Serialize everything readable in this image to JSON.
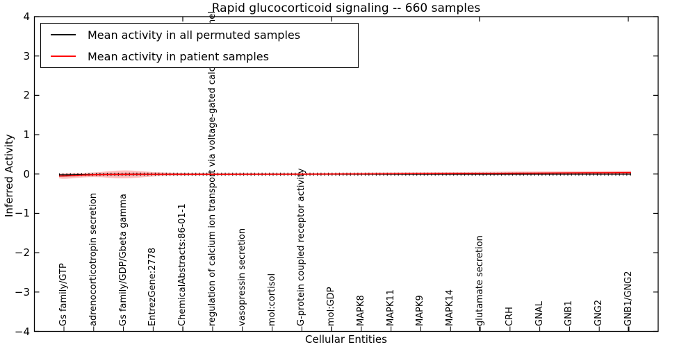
{
  "figure": {
    "title": "Rapid glucocorticoid signaling -- 660 samples",
    "xlabel": "Cellular Entities",
    "ylabel": "Inferred Activity"
  },
  "legend": {
    "items": [
      {
        "label": "Mean activity in all permuted samples",
        "color": "#000000"
      },
      {
        "label": "Mean activity in patient samples",
        "color": "#ff0000"
      }
    ],
    "position": "upper left"
  },
  "y_tick_labels": [
    "4",
    "3",
    "2",
    "1",
    "0",
    "−1",
    "−2",
    "−3",
    "−4"
  ],
  "chart_data": {
    "type": "line",
    "title": "Rapid glucocorticoid signaling -- 660 samples",
    "xlabel": "Cellular Entities",
    "ylabel": "Inferred Activity",
    "ylim": [
      -4,
      4
    ],
    "grid": false,
    "legend_position": "upper left",
    "categories": [
      "Gs family/GTP",
      "adrenocorticotropin secretion",
      "Gs family/GDP/Gbeta gamma",
      "EntrezGene:2778",
      "ChemicalAbstracts:86-01-1",
      "regulation of calcium ion transport via voltage-gated calcium channel",
      "vasopressin secretion",
      "mol:cortisol",
      "G-protein coupled receptor activity",
      "mol:GDP",
      "MAPK8",
      "MAPK11",
      "MAPK9",
      "MAPK14",
      "glutamate secretion",
      "CRH",
      "GNAL",
      "GNB1",
      "GNG2",
      "GNB1/GNG2"
    ],
    "series": [
      {
        "name": "Mean activity in all permuted samples",
        "color": "#000000",
        "style": "solid line with small vertical dash markers",
        "values": [
          -0.02,
          -0.01,
          -0.005,
          -0.005,
          -0.005,
          -0.005,
          -0.005,
          -0.005,
          -0.005,
          -0.005,
          -0.005,
          -0.005,
          -0.005,
          -0.005,
          -0.005,
          -0.005,
          -0.005,
          -0.005,
          -0.005,
          -0.005
        ]
      },
      {
        "name": "Mean activity in patient samples",
        "color": "#ff0000",
        "style": "solid line",
        "values": [
          -0.05,
          -0.015,
          -0.008,
          -0.006,
          -0.006,
          -0.006,
          -0.006,
          -0.005,
          -0.003,
          0,
          0.003,
          0.006,
          0.01,
          0.013,
          0.016,
          0.02,
          0.024,
          0.028,
          0.032,
          0.036
        ]
      }
    ],
    "band": {
      "description": "translucent red spread band around mean activity",
      "color": "#ff0000",
      "opacity": 0.25,
      "halfwidths": [
        0.08,
        0.045,
        0.12,
        0.05,
        0.032,
        0.028,
        0.026,
        0.026,
        0.028,
        0.03,
        0.032,
        0.032,
        0.034,
        0.034,
        0.038,
        0.04,
        0.042,
        0.042,
        0.045,
        0.048
      ]
    }
  }
}
